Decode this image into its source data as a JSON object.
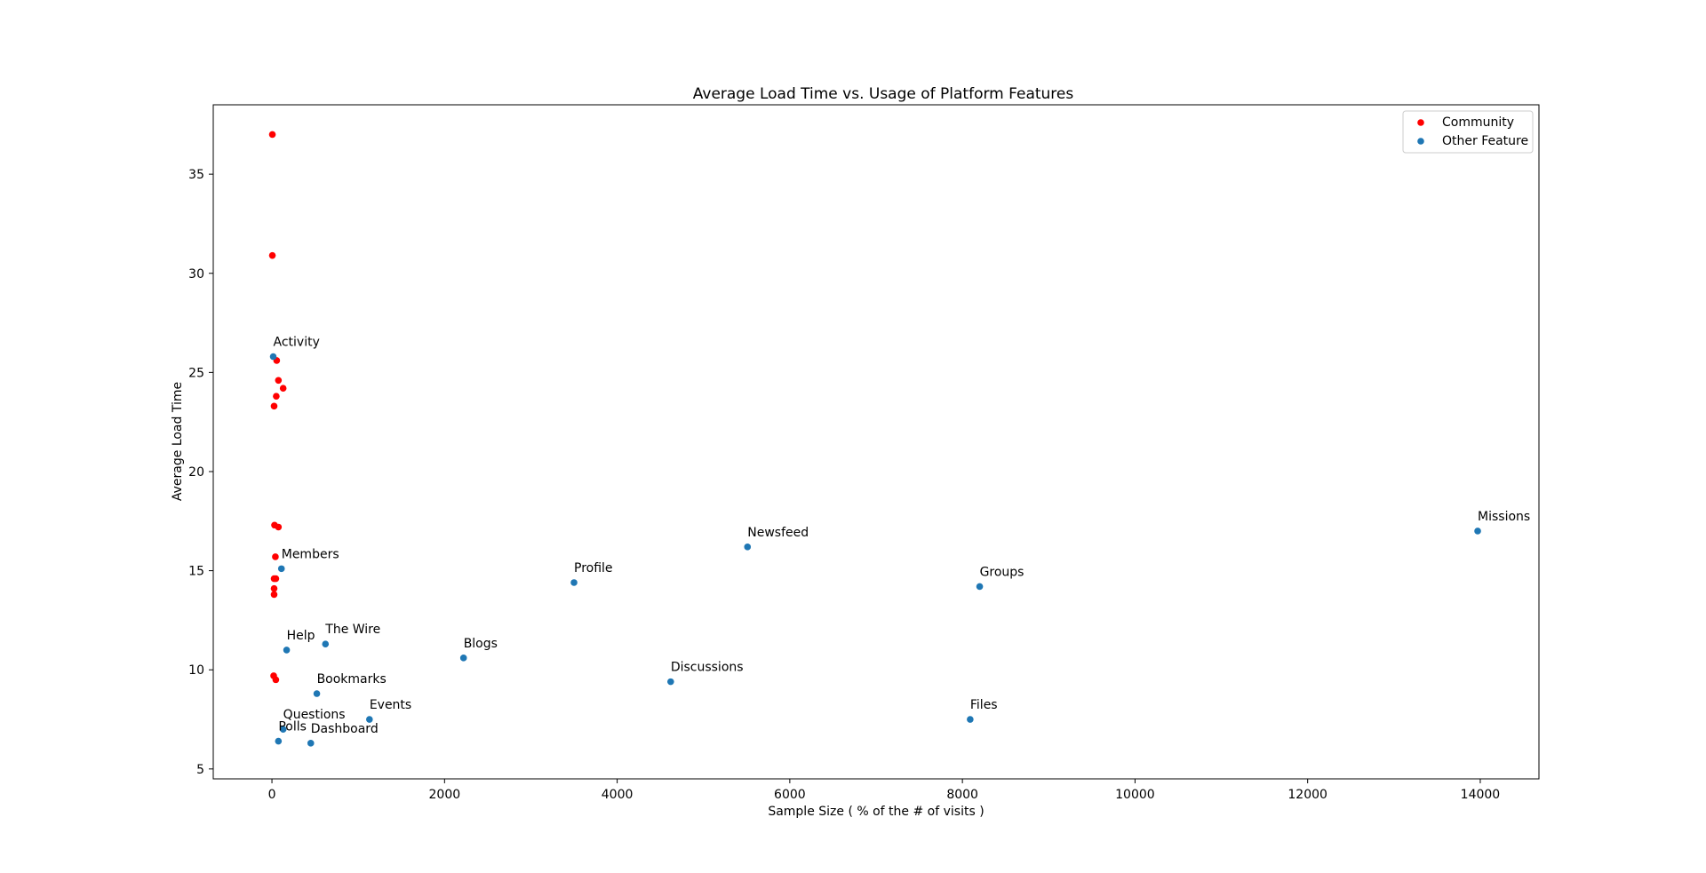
{
  "chart_data": {
    "type": "scatter",
    "title": "Average Load Time vs. Usage of Platform Features",
    "xlabel": "Sample Size ( % of the # of visits )",
    "ylabel": "Average Load Time",
    "xlim": [
      -680,
      14680
    ],
    "ylim": [
      4.5,
      38.5
    ],
    "xticks": [
      0,
      2000,
      4000,
      6000,
      8000,
      10000,
      12000,
      14000
    ],
    "yticks": [
      5,
      10,
      15,
      20,
      25,
      30,
      35
    ],
    "grid": false,
    "legend_position": "top-right",
    "series": [
      {
        "name": "Community",
        "color": "#ff0000",
        "points": [
          {
            "x": 5,
            "y": 37.0
          },
          {
            "x": 5,
            "y": 30.9
          },
          {
            "x": 55,
            "y": 25.6
          },
          {
            "x": 75,
            "y": 24.6
          },
          {
            "x": 130,
            "y": 24.2
          },
          {
            "x": 50,
            "y": 23.8
          },
          {
            "x": 25,
            "y": 23.3
          },
          {
            "x": 30,
            "y": 17.3
          },
          {
            "x": 75,
            "y": 17.2
          },
          {
            "x": 40,
            "y": 15.7
          },
          {
            "x": 25,
            "y": 14.6
          },
          {
            "x": 45,
            "y": 14.6
          },
          {
            "x": 25,
            "y": 14.1
          },
          {
            "x": 25,
            "y": 13.8
          },
          {
            "x": 20,
            "y": 9.7
          },
          {
            "x": 45,
            "y": 9.5
          }
        ]
      },
      {
        "name": "Other Feature",
        "color": "#1f77b4",
        "points": [
          {
            "x": 15,
            "y": 25.8,
            "label": "Activity"
          },
          {
            "x": 110,
            "y": 15.1,
            "label": "Members"
          },
          {
            "x": 170,
            "y": 11.0,
            "label": "Help"
          },
          {
            "x": 620,
            "y": 11.3,
            "label": "The Wire"
          },
          {
            "x": 2220,
            "y": 10.6,
            "label": "Blogs"
          },
          {
            "x": 3500,
            "y": 14.4,
            "label": "Profile"
          },
          {
            "x": 5510,
            "y": 16.2,
            "label": "Newsfeed"
          },
          {
            "x": 4620,
            "y": 9.4,
            "label": "Discussions"
          },
          {
            "x": 520,
            "y": 8.8,
            "label": "Bookmarks"
          },
          {
            "x": 1130,
            "y": 7.5,
            "label": "Events"
          },
          {
            "x": 130,
            "y": 7.0,
            "label": "Questions"
          },
          {
            "x": 75,
            "y": 6.4,
            "label": "Polls"
          },
          {
            "x": 450,
            "y": 6.3,
            "label": "Dashboard"
          },
          {
            "x": 8200,
            "y": 14.2,
            "label": "Groups"
          },
          {
            "x": 8090,
            "y": 7.5,
            "label": "Files"
          },
          {
            "x": 13970,
            "y": 17.0,
            "label": "Missions"
          }
        ]
      }
    ]
  }
}
